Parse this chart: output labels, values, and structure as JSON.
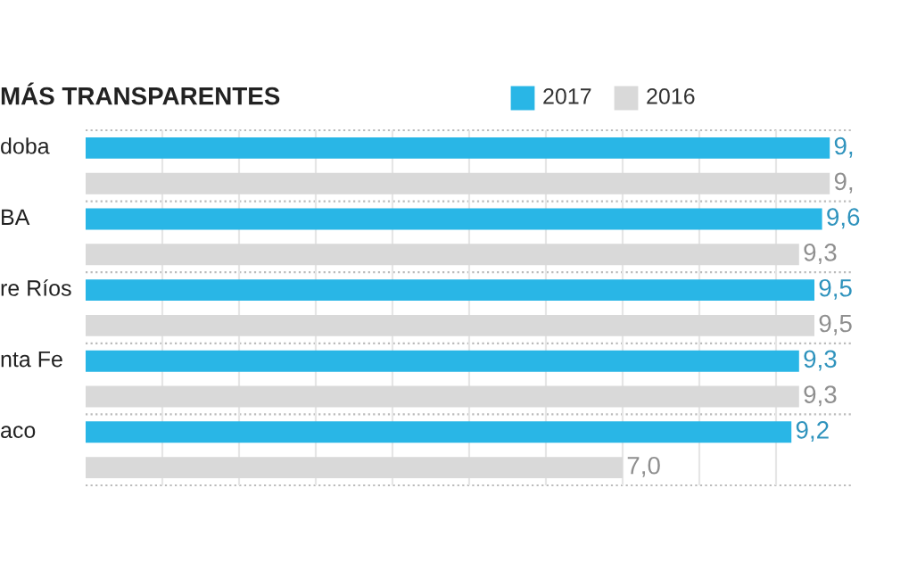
{
  "chart_data": {
    "type": "bar",
    "orientation": "horizontal",
    "title": "MÁS TRANSPARENTES",
    "categories": [
      "doba",
      "BA",
      "re Ríos",
      "nta Fe",
      "aco"
    ],
    "series": [
      {
        "name": "2017",
        "color": "#29b6e6",
        "values": [
          9.7,
          9.6,
          9.5,
          9.3,
          9.2
        ],
        "value_labels": [
          null,
          "9,6",
          "9,5",
          "9,3",
          "9,2"
        ]
      },
      {
        "name": "2016",
        "color": "#d9d9d9",
        "values": [
          9.7,
          9.3,
          9.5,
          9.3,
          7.0
        ],
        "value_labels": [
          null,
          "9,3",
          "9,5",
          "9,3",
          "7,0"
        ]
      }
    ],
    "annotations": [
      "9,",
      "9,"
    ],
    "xlim": [
      0,
      10
    ],
    "xticks": [
      {
        "value": 1,
        "label": null
      },
      {
        "value": 2,
        "label": null
      },
      {
        "value": 3,
        "label": null
      },
      {
        "value": 4,
        "label": null
      },
      {
        "value": 5,
        "label": null
      },
      {
        "value": 6,
        "label": null
      },
      {
        "value": 7,
        "label": null
      },
      {
        "value": 8,
        "label": null
      },
      {
        "value": 9,
        "label": null
      }
    ],
    "grid": "x",
    "legend": "top",
    "tick_labels": "y"
  }
}
